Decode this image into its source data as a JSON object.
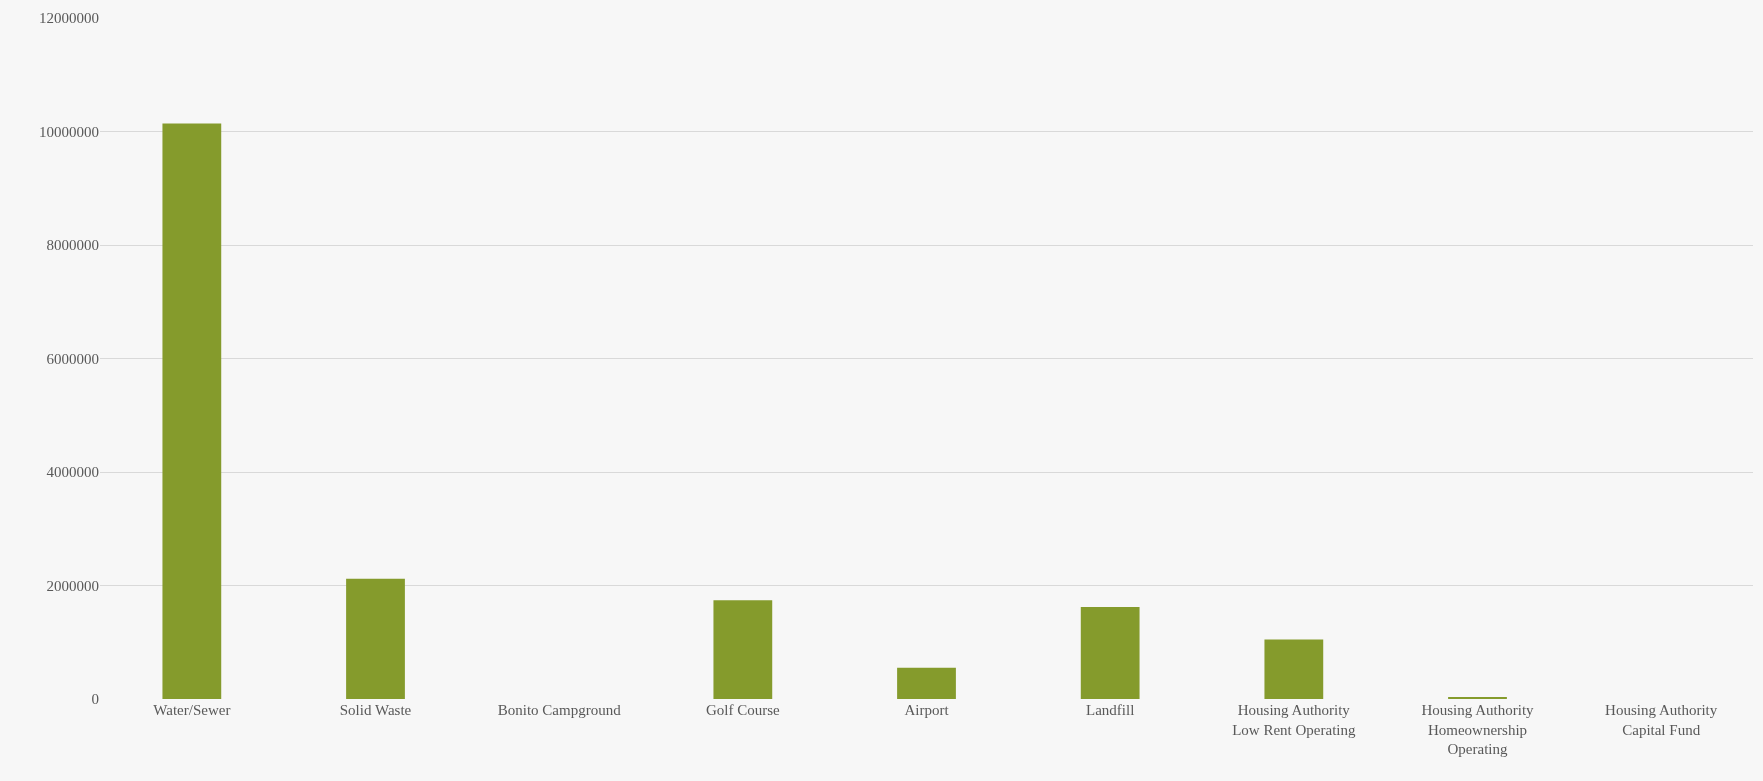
{
  "chart_data": {
    "type": "bar",
    "categories": [
      "Water/Sewer",
      "Solid Waste",
      "Bonito Campground",
      "Golf Course",
      "Airport",
      "Landfill",
      "Housing Authority\nLow Rent Operating",
      "Housing Authority\nHomeownership\nOperating",
      "Housing Authority\nCapital Fund"
    ],
    "values": [
      10140000,
      2120000,
      0,
      1740000,
      550000,
      1620000,
      1050000,
      30000,
      0
    ],
    "color": "#859b2c",
    "ylim": [
      0,
      12000000
    ],
    "yticks": [
      0,
      2000000,
      4000000,
      6000000,
      8000000,
      10000000,
      12000000
    ],
    "grid": "y",
    "legend": false
  }
}
